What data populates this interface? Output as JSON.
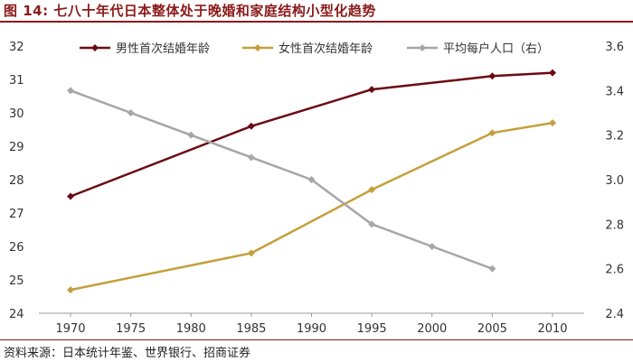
{
  "title": "图 14:  七八十年代日本整体处于晚婚和家庭结构小型化趋势",
  "source": "资料来源：日本统计年鉴、世界银行、招商证券",
  "chart_data": {
    "type": "line",
    "x": [
      1970,
      1975,
      1980,
      1985,
      1990,
      1995,
      2000,
      2005,
      2010
    ],
    "x_tick_labels": [
      "1970",
      "1975",
      "1980",
      "1985",
      "1990",
      "1995",
      "2000",
      "2005",
      "2010"
    ],
    "ylim_left": [
      24,
      32
    ],
    "yticks_left": [
      "24",
      "25",
      "26",
      "27",
      "28",
      "29",
      "30",
      "31",
      "32"
    ],
    "ylim_right": [
      2.4,
      3.6
    ],
    "yticks_right": [
      "2.4",
      "2.6",
      "2.8",
      "3.0",
      "3.2",
      "3.4",
      "3.6"
    ],
    "series": [
      {
        "name": "男性首次结婚年龄",
        "axis": "left",
        "color": "#6b0a12",
        "points": [
          [
            1970,
            27.5
          ],
          [
            1985,
            29.6
          ],
          [
            1995,
            30.7
          ],
          [
            2005,
            31.1
          ],
          [
            2010,
            31.2
          ]
        ]
      },
      {
        "name": "女性首次结婚年龄",
        "axis": "left",
        "color": "#c4a03c",
        "points": [
          [
            1970,
            24.7
          ],
          [
            1985,
            25.8
          ],
          [
            1995,
            27.7
          ],
          [
            2005,
            29.4
          ],
          [
            2010,
            29.7
          ]
        ]
      },
      {
        "name": "平均每户人口（右）",
        "axis": "right",
        "color": "#a6a6a6",
        "points": [
          [
            1970,
            3.4
          ],
          [
            1975,
            3.3
          ],
          [
            1980,
            3.2
          ],
          [
            1985,
            3.1
          ],
          [
            1990,
            3.0
          ],
          [
            1995,
            2.8
          ],
          [
            2000,
            2.7
          ],
          [
            2005,
            2.6
          ]
        ]
      }
    ],
    "legend_position": "top"
  }
}
